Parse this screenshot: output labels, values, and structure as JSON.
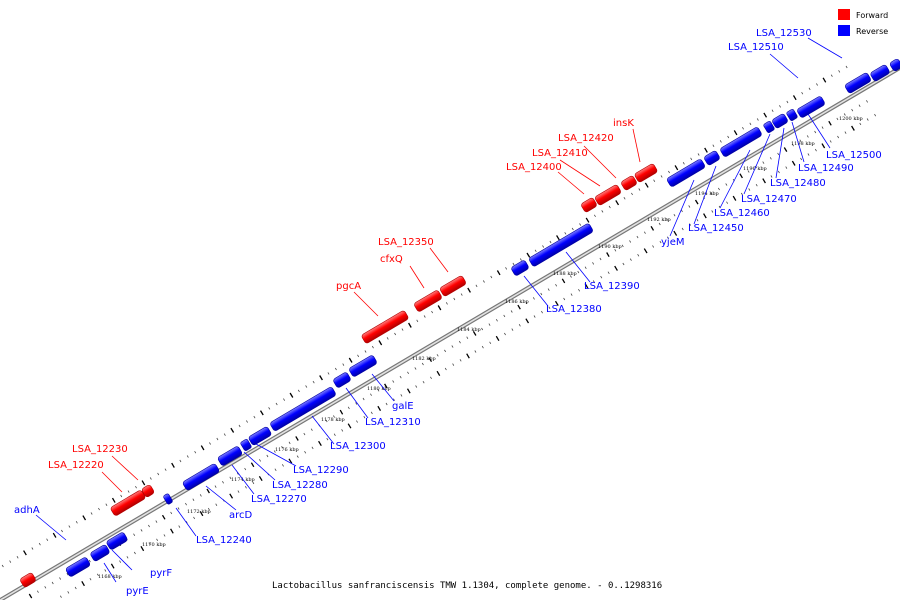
{
  "caption": "Lactobacillus sanfranciscensis TMW 1.1304, complete genome. - 0..1298316",
  "legend": [
    {
      "label": "Forward",
      "color": "#ff0000"
    },
    {
      "label": "Reverse",
      "color": "#0000ff"
    }
  ],
  "colors": {
    "forward": "#ff0000",
    "reverse": "#0000ff",
    "backbone": "#9a9a9a"
  },
  "tick_labels": [
    "1168 kbp",
    "1170 kbp",
    "1172 kbp",
    "1174 kbp",
    "1176 kbp",
    "1178 kbp",
    "1180 kbp",
    "1182 kbp",
    "1184 kbp",
    "1186 kbp",
    "1188 kbp",
    "1190 kbp",
    "1192 kbp",
    "1194 kbp",
    "1196 kbp",
    "1198 kbp",
    "1200 kbp"
  ],
  "forward_labels": [
    "LSA_12230",
    "LSA_12220",
    "pgcA",
    "LSA_12350",
    "cfxQ",
    "LSA_12420",
    "LSA_12410",
    "LSA_12400",
    "insK"
  ],
  "reverse_labels": [
    "adhA",
    "pyrF",
    "pyrE",
    "LSA_12240",
    "arcD",
    "LSA_12270",
    "LSA_12280",
    "LSA_12290",
    "LSA_12300",
    "LSA_12310",
    "galE",
    "LSA_12380",
    "LSA_12390",
    "yjeM",
    "LSA_12450",
    "LSA_12460",
    "LSA_12470",
    "LSA_12480",
    "LSA_12490",
    "LSA_12500",
    "LSA_12510",
    "LSA_12530"
  ]
}
